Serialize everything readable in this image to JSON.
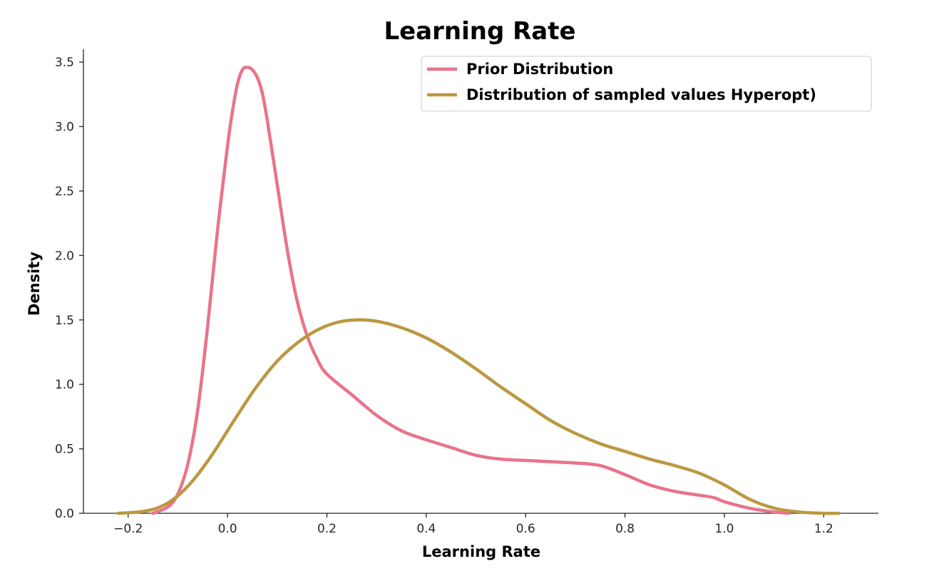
{
  "chart_data": {
    "type": "line",
    "title": "Learning Rate",
    "xlabel": "Learning Rate",
    "ylabel": "Density",
    "xlim": [
      -0.29,
      1.31
    ],
    "ylim": [
      0,
      3.6
    ],
    "x_ticks": [
      -0.2,
      0.0,
      0.2,
      0.4,
      0.6,
      0.8,
      1.0,
      1.2
    ],
    "x_tick_labels": [
      "−0.2",
      "0.0",
      "0.2",
      "0.4",
      "0.6",
      "0.8",
      "1.0",
      "1.2"
    ],
    "y_ticks": [
      0.0,
      0.5,
      1.0,
      1.5,
      2.0,
      2.5,
      3.0,
      3.5
    ],
    "y_tick_labels": [
      "0.0",
      "0.5",
      "1.0",
      "1.5",
      "2.0",
      "2.5",
      "3.0",
      "3.5"
    ],
    "grid": false,
    "legend_position": "top-right",
    "series": [
      {
        "name": "Prior Distribution",
        "color": "#e8748a",
        "x": [
          -0.15,
          -0.12,
          -0.1,
          -0.08,
          -0.06,
          -0.04,
          -0.02,
          0.0,
          0.01,
          0.02,
          0.03,
          0.04,
          0.05,
          0.06,
          0.07,
          0.08,
          0.1,
          0.12,
          0.14,
          0.16,
          0.18,
          0.2,
          0.25,
          0.3,
          0.35,
          0.4,
          0.45,
          0.5,
          0.55,
          0.6,
          0.65,
          0.7,
          0.75,
          0.8,
          0.85,
          0.9,
          0.95,
          0.98,
          1.0,
          1.05,
          1.1,
          1.13
        ],
        "y": [
          0.0,
          0.05,
          0.15,
          0.38,
          0.8,
          1.45,
          2.2,
          2.85,
          3.12,
          3.33,
          3.44,
          3.46,
          3.44,
          3.38,
          3.26,
          3.05,
          2.55,
          2.05,
          1.65,
          1.38,
          1.2,
          1.08,
          0.92,
          0.76,
          0.64,
          0.57,
          0.51,
          0.45,
          0.42,
          0.41,
          0.4,
          0.39,
          0.37,
          0.3,
          0.22,
          0.17,
          0.14,
          0.12,
          0.09,
          0.04,
          0.01,
          0.0
        ]
      },
      {
        "name": "Distribution of sampled values Hyperopt)",
        "color": "#bb9841",
        "x": [
          -0.22,
          -0.18,
          -0.15,
          -0.12,
          -0.09,
          -0.06,
          -0.03,
          0.0,
          0.03,
          0.06,
          0.1,
          0.14,
          0.18,
          0.22,
          0.26,
          0.3,
          0.35,
          0.4,
          0.45,
          0.5,
          0.55,
          0.6,
          0.65,
          0.7,
          0.75,
          0.8,
          0.85,
          0.9,
          0.95,
          1.0,
          1.05,
          1.1,
          1.15,
          1.2,
          1.23
        ],
        "y": [
          0.0,
          0.01,
          0.03,
          0.08,
          0.17,
          0.3,
          0.46,
          0.64,
          0.82,
          0.99,
          1.18,
          1.32,
          1.42,
          1.48,
          1.5,
          1.49,
          1.44,
          1.36,
          1.25,
          1.12,
          0.98,
          0.85,
          0.72,
          0.62,
          0.54,
          0.48,
          0.42,
          0.37,
          0.31,
          0.22,
          0.11,
          0.04,
          0.01,
          0.0,
          0.0
        ]
      }
    ]
  }
}
